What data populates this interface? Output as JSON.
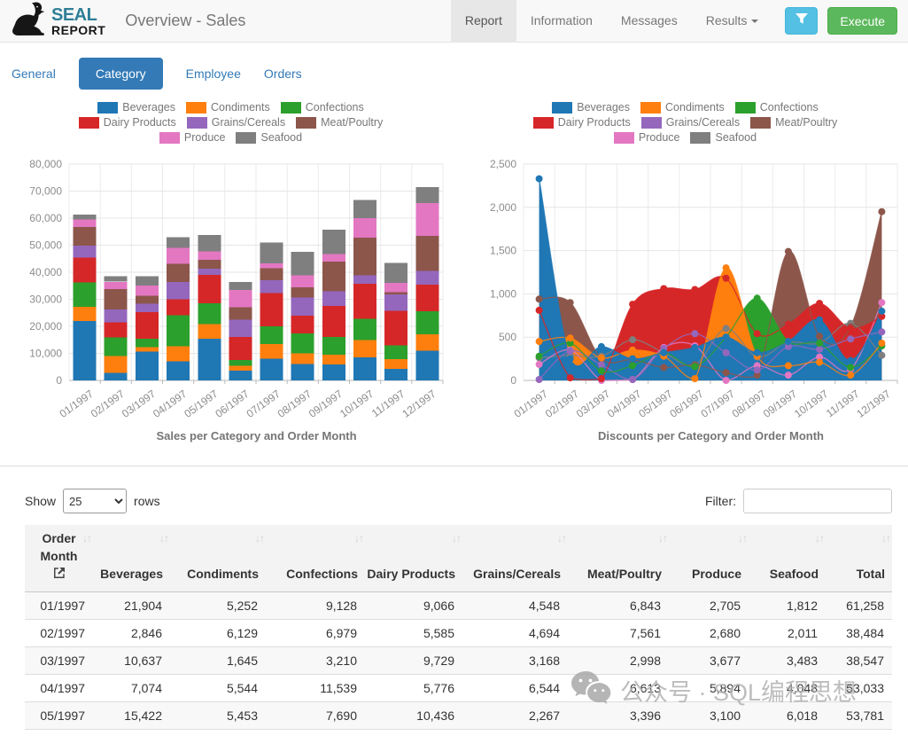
{
  "header": {
    "brand": {
      "icon": "seal-icon",
      "name_top": "SEAL",
      "name_bottom": "REPORT",
      "brand_color": "#2e7f96"
    },
    "title": "Overview - Sales",
    "nav": [
      {
        "label": "Report",
        "active": true,
        "caret": false
      },
      {
        "label": "Information",
        "active": false,
        "caret": false
      },
      {
        "label": "Messages",
        "active": false,
        "caret": false
      },
      {
        "label": "Results",
        "active": false,
        "caret": true
      }
    ],
    "filter_button": {
      "icon": "funnel-icon",
      "color": "#53c0e4"
    },
    "execute_button": {
      "label": "Execute",
      "color": "#5cb85c"
    }
  },
  "view_tabs": [
    {
      "label": "General",
      "active": false
    },
    {
      "label": "Category",
      "active": true
    },
    {
      "label": "Employee",
      "active": false
    },
    {
      "label": "Orders",
      "active": false
    }
  ],
  "chart_data": [
    {
      "type": "bar",
      "stacked": true,
      "title": "Sales per Category and Order Month",
      "legend_position": "top",
      "grid": true,
      "xlabel": "",
      "ylabel": "",
      "ylim": [
        0,
        80000
      ],
      "ytick_step": 10000,
      "categories": [
        "01/1997",
        "02/1997",
        "03/1997",
        "04/1997",
        "05/1997",
        "06/1997",
        "07/1997",
        "08/1997",
        "09/1997",
        "10/1997",
        "11/1997",
        "12/1997"
      ],
      "series": [
        {
          "name": "Beverages",
          "color": "#1f77b4",
          "values": [
            21904,
            2846,
            10637,
            7074,
            15422,
            3600,
            8000,
            6000,
            5900,
            8600,
            4200,
            11000
          ]
        },
        {
          "name": "Condiments",
          "color": "#ff7f0e",
          "values": [
            5252,
            6129,
            1645,
            5544,
            5453,
            1800,
            5500,
            4000,
            3600,
            6400,
            3600,
            6000
          ]
        },
        {
          "name": "Confections",
          "color": "#2ca02c",
          "values": [
            9128,
            6979,
            3210,
            11539,
            7690,
            2200,
            6500,
            7300,
            6500,
            7800,
            5200,
            8500
          ]
        },
        {
          "name": "Dairy Products",
          "color": "#d62728",
          "values": [
            9066,
            5585,
            9729,
            5776,
            10436,
            8400,
            12300,
            6700,
            11500,
            13000,
            12800,
            10000
          ]
        },
        {
          "name": "Grains/Cereals",
          "color": "#9467bd",
          "values": [
            4548,
            4694,
            3168,
            6544,
            2267,
            6500,
            4700,
            6600,
            5500,
            3000,
            6000,
            5000
          ]
        },
        {
          "name": "Meat/Poultry",
          "color": "#8c564b",
          "values": [
            6843,
            7561,
            2998,
            6613,
            3396,
            4500,
            4500,
            3800,
            11000,
            14000,
            800,
            13000
          ]
        },
        {
          "name": "Produce",
          "color": "#e377c2",
          "values": [
            2705,
            2680,
            3677,
            5894,
            3100,
            6500,
            1800,
            4500,
            2800,
            7200,
            3400,
            12000
          ]
        },
        {
          "name": "Seafood",
          "color": "#7f7f7f",
          "values": [
            1812,
            2011,
            3483,
            4048,
            6018,
            2900,
            7700,
            8600,
            9000,
            6800,
            7500,
            6000
          ]
        }
      ]
    },
    {
      "type": "area",
      "stacked": false,
      "title": "Discounts per Category and Order Month",
      "legend_position": "top",
      "grid": true,
      "xlabel": "",
      "ylabel": "",
      "ylim": [
        0,
        2500
      ],
      "ytick_step": 500,
      "categories": [
        "01/1997",
        "02/1997",
        "03/1997",
        "04/1997",
        "05/1997",
        "06/1997",
        "07/1997",
        "08/1997",
        "09/1997",
        "10/1997",
        "11/1997",
        "12/1997"
      ],
      "series": [
        {
          "name": "Beverages",
          "color": "#1f77b4",
          "values": [
            2330,
            250,
            390,
            250,
            320,
            380,
            500,
            320,
            450,
            700,
            230,
            800
          ]
        },
        {
          "name": "Condiments",
          "color": "#ff7f0e",
          "values": [
            450,
            490,
            260,
            350,
            280,
            20,
            1300,
            280,
            170,
            210,
            60,
            430
          ]
        },
        {
          "name": "Confections",
          "color": "#2ca02c",
          "values": [
            280,
            430,
            110,
            170,
            320,
            160,
            500,
            950,
            450,
            430,
            150,
            400
          ]
        },
        {
          "name": "Dairy Products",
          "color": "#d62728",
          "values": [
            810,
            30,
            20,
            880,
            1060,
            1050,
            1180,
            540,
            650,
            890,
            600,
            740
          ]
        },
        {
          "name": "Grains/Cereals",
          "color": "#9467bd",
          "values": [
            10,
            340,
            180,
            10,
            370,
            540,
            320,
            120,
            390,
            360,
            480,
            560
          ]
        },
        {
          "name": "Meat/Poultry",
          "color": "#8c564b",
          "values": [
            940,
            900,
            250,
            240,
            150,
            180,
            90,
            60,
            1490,
            510,
            620,
            1950
          ]
        },
        {
          "name": "Produce",
          "color": "#e377c2",
          "values": [
            185,
            350,
            0,
            10,
            380,
            400,
            0,
            170,
            60,
            270,
            130,
            900
          ]
        },
        {
          "name": "Seafood",
          "color": "#7f7f7f",
          "values": [
            260,
            290,
            280,
            470,
            320,
            180,
            600,
            270,
            440,
            430,
            660,
            290
          ]
        }
      ]
    }
  ],
  "table": {
    "show_label": "Show",
    "page_size": "25",
    "rows_label": "rows",
    "filter_label": "Filter:",
    "filter_value": "",
    "first_column_icon": "external-link-icon",
    "sort_icon": "sort-arrows-icon",
    "columns": [
      "Order Month",
      "Beverages",
      "Condiments",
      "Confections",
      "Dairy Products",
      "Grains/Cereals",
      "Meat/Poultry",
      "Produce",
      "Seafood",
      "Total"
    ],
    "rows": [
      [
        "01/1997",
        "21,904",
        "5,252",
        "9,128",
        "9,066",
        "4,548",
        "6,843",
        "2,705",
        "1,812",
        "61,258"
      ],
      [
        "02/1997",
        "2,846",
        "6,129",
        "6,979",
        "5,585",
        "4,694",
        "7,561",
        "2,680",
        "2,011",
        "38,484"
      ],
      [
        "03/1997",
        "10,637",
        "1,645",
        "3,210",
        "9,729",
        "3,168",
        "2,998",
        "3,677",
        "3,483",
        "38,547"
      ],
      [
        "04/1997",
        "7,074",
        "5,544",
        "11,539",
        "5,776",
        "6,544",
        "6,613",
        "5,894",
        "4,048",
        "53,033"
      ],
      [
        "05/1997",
        "15,422",
        "5,453",
        "7,690",
        "10,436",
        "2,267",
        "3,396",
        "3,100",
        "6,018",
        "53,781"
      ]
    ]
  },
  "watermark": {
    "icon": "wechat-icon",
    "text": "公众号 · SQL编程思想"
  }
}
